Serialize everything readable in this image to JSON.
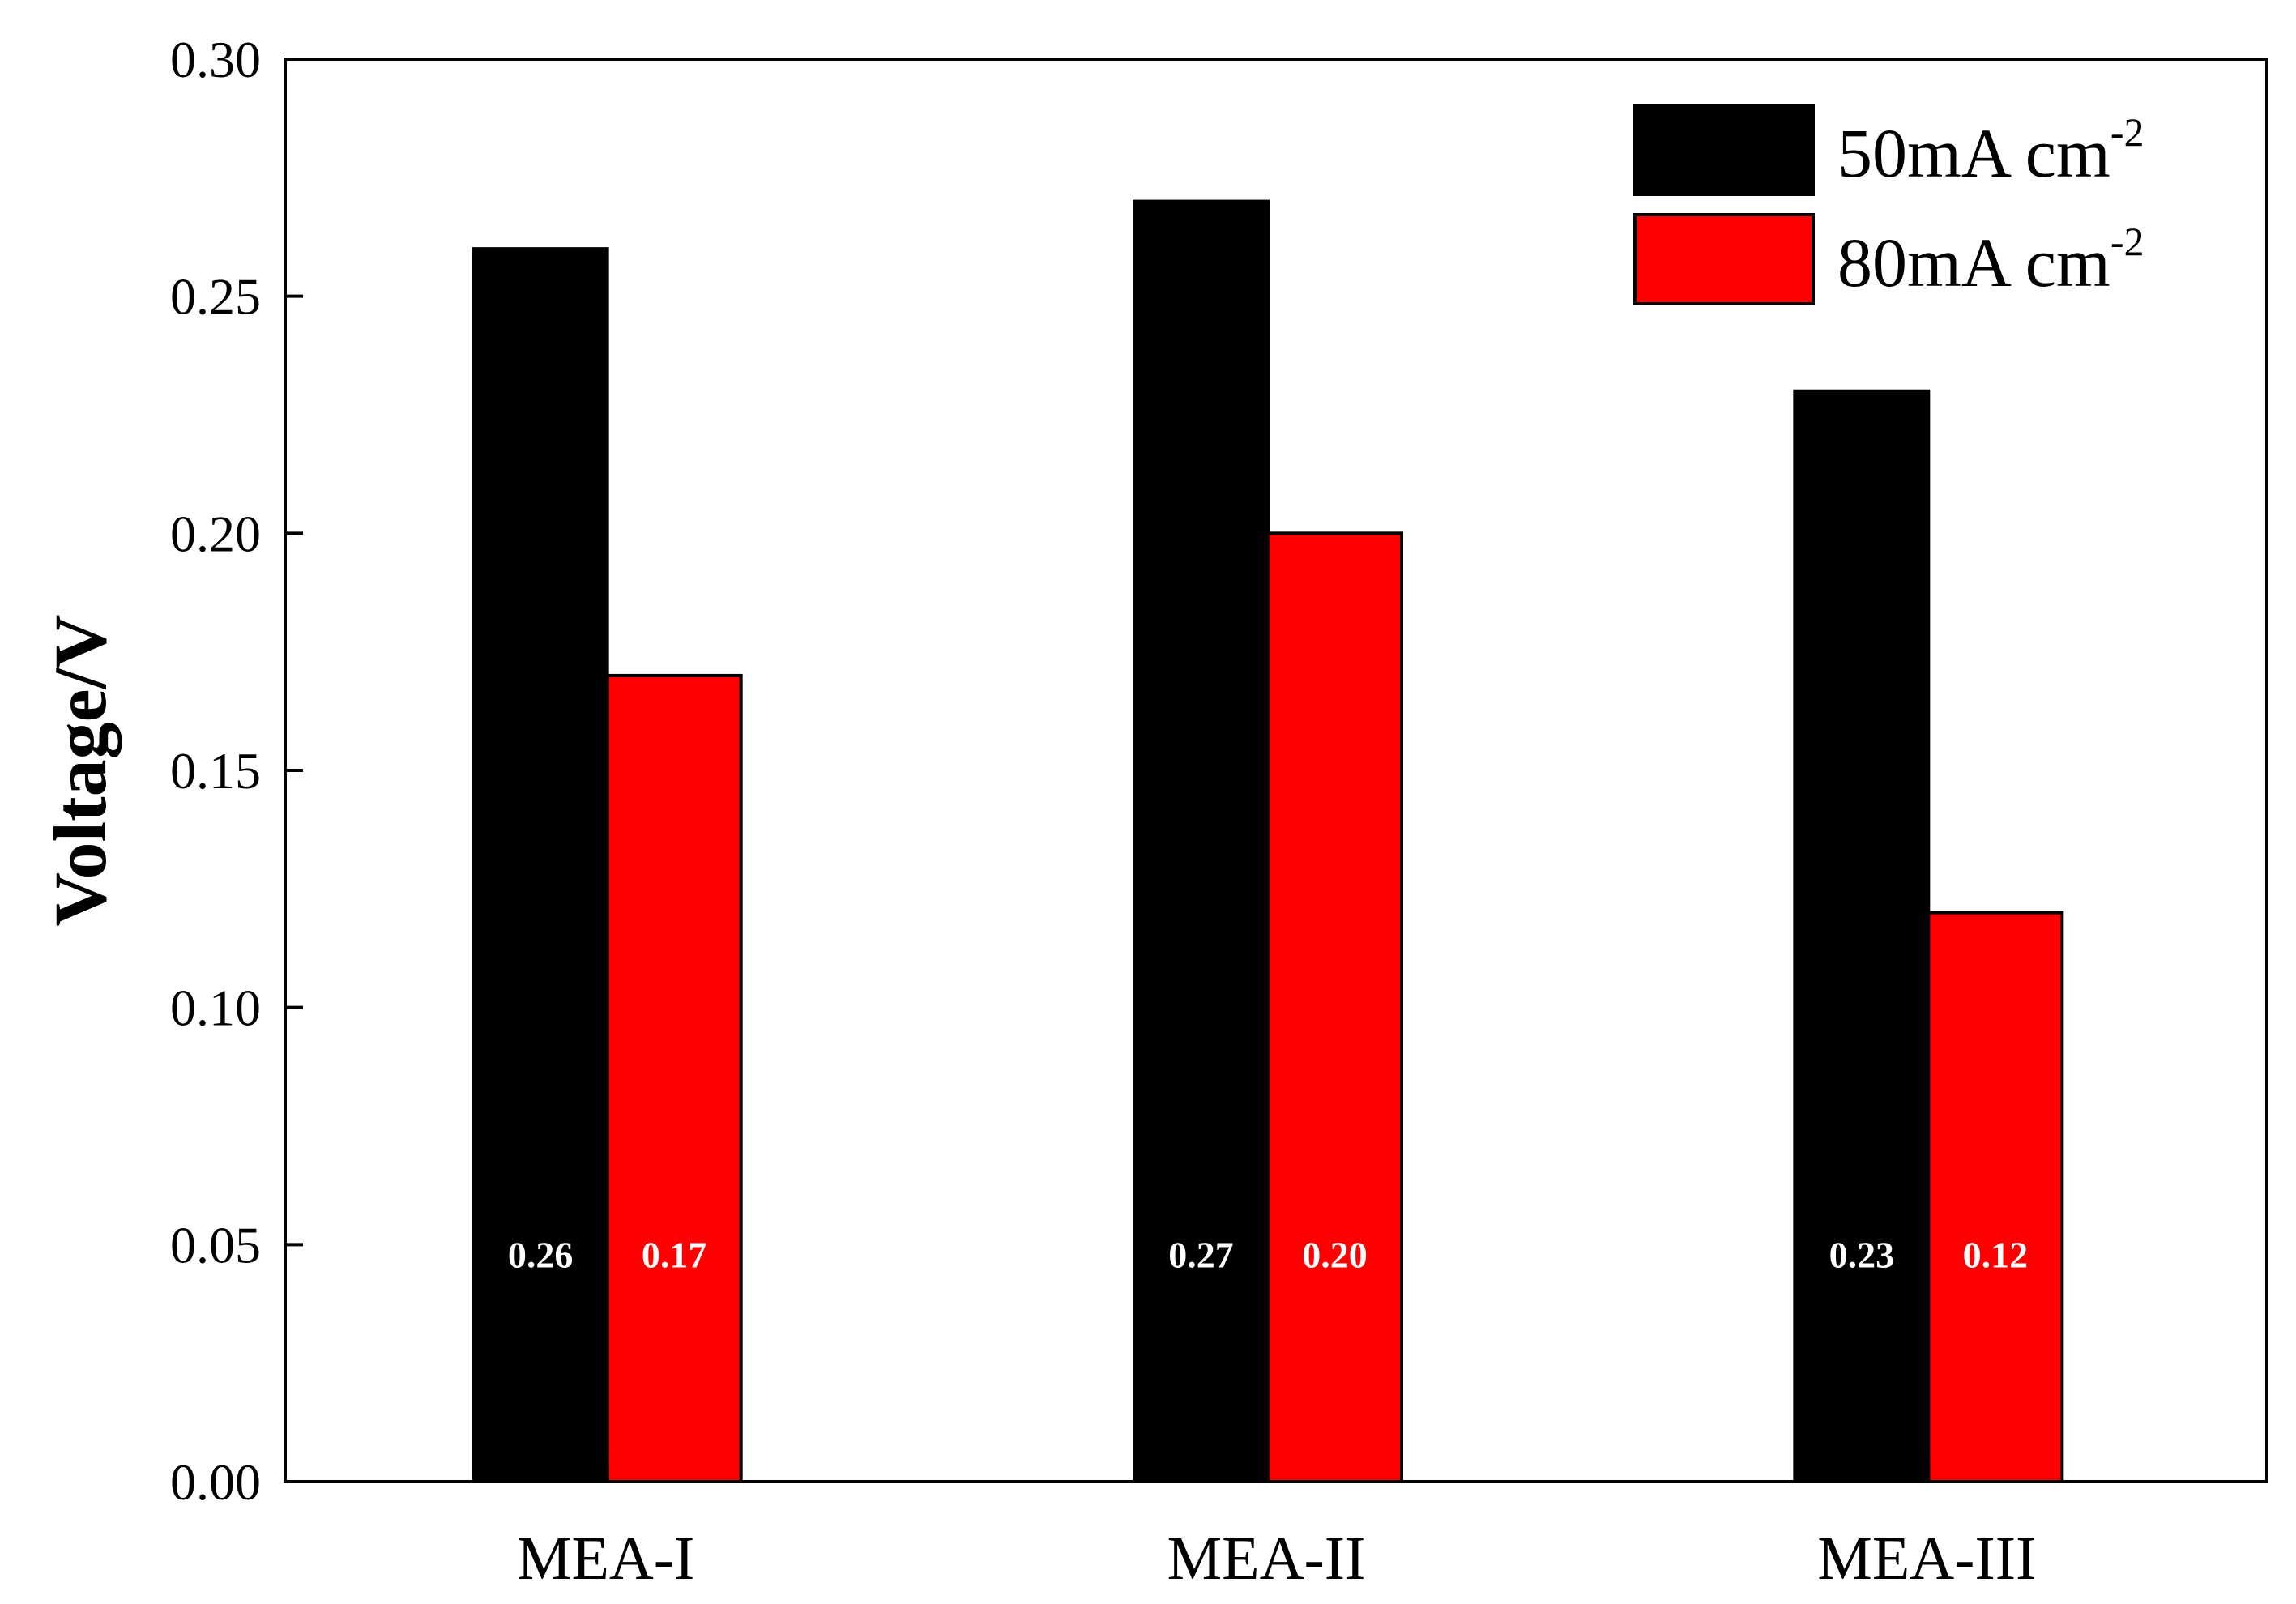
{
  "chart_data": {
    "type": "bar",
    "ylabel": "Voltage/V",
    "xlabel": "",
    "ylim": [
      0,
      0.3
    ],
    "yticks": [
      "0.00",
      "0.05",
      "0.10",
      "0.15",
      "0.20",
      "0.25",
      "0.30"
    ],
    "categories": [
      "MEA-I",
      "MEA-II",
      "MEA-III"
    ],
    "series": [
      {
        "name": "50mA cm-2",
        "name_base": "50mA cm",
        "name_sup": "-2",
        "color": "#000000",
        "values": [
          0.26,
          0.27,
          0.23
        ],
        "labels": [
          "0.26",
          "0.27",
          "0.23"
        ]
      },
      {
        "name": "80mA cm-2",
        "name_base": "80mA cm",
        "name_sup": "-2",
        "color": "#ff0000",
        "values": [
          0.17,
          0.2,
          0.12
        ],
        "labels": [
          "0.17",
          "0.20",
          "0.12"
        ]
      }
    ],
    "legend_position": "top-right",
    "grid": false
  }
}
